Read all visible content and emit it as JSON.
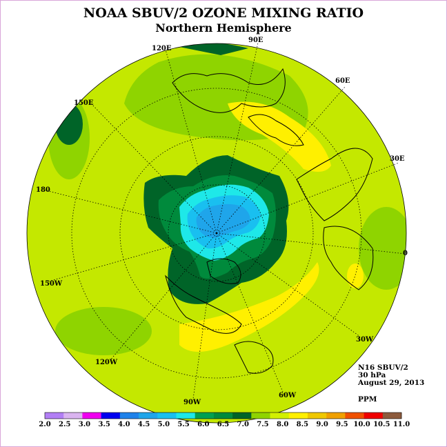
{
  "title": "NOAA SBUV/2 OZONE MIXING RATIO",
  "subtitle": "Northern Hemisphere",
  "projection": "north polar stereographic",
  "longitude_labels": [
    "90E",
    "60E",
    "30E",
    "0",
    "30W",
    "60W",
    "90W",
    "120W",
    "150W",
    "180",
    "150E",
    "120E"
  ],
  "info": {
    "instrument": "N16 SBUV/2",
    "level": "30 hPa",
    "date": "August 29, 2013",
    "units": "PPM"
  },
  "colorbar": {
    "ticks": [
      "2.0",
      "2.5",
      "3.0",
      "3.5",
      "4.0",
      "4.5",
      "5.0",
      "5.5",
      "6.0",
      "6.5",
      "7.0",
      "7.5",
      "8.0",
      "8.5",
      "9.0",
      "9.5",
      "10.0",
      "10.5",
      "11.0"
    ],
    "colors": [
      "#b27ff5",
      "#dab4f0",
      "#f000f0",
      "#0000f0",
      "#1f82ea",
      "#1fa5ea",
      "#19bff0",
      "#1ee8e8",
      "#00a050",
      "#008a3c",
      "#006428",
      "#8fd400",
      "#d2f000",
      "#fff000",
      "#f0c800",
      "#f0a000",
      "#f05000",
      "#f00000",
      "#8c5a3c"
    ]
  },
  "chart_data": {
    "type": "heatmap",
    "variable": "Ozone mixing ratio",
    "units": "PPM",
    "color_scale_range": [
      2.0,
      11.0
    ],
    "regions": [
      {
        "area": "North Pole / Arctic center",
        "value_range": [
          4.5,
          5.5
        ]
      },
      {
        "area": "Arctic ring",
        "value_range": [
          5.5,
          6.0
        ]
      },
      {
        "area": "High latitudes (Canada, Greenland, Siberia)",
        "value_range": [
          6.0,
          7.0
        ]
      },
      {
        "area": "Mid latitudes",
        "value_range": [
          7.5,
          8.0
        ]
      },
      {
        "area": "Subtropics (Central Asia, Atlantic, Caribbean)",
        "value_range": [
          8.0,
          8.5
        ]
      },
      {
        "area": "Equator edge near 120E",
        "value_range": [
          6.5,
          7.0
        ]
      }
    ]
  }
}
